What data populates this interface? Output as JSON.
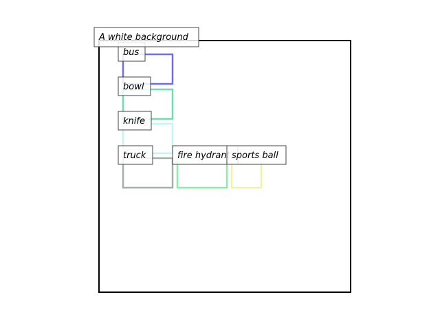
{
  "caption": "A white background",
  "colors": {
    "frame": "#000000",
    "label_border": "#444444",
    "label_fill": "#ffffff"
  },
  "objects": [
    {
      "label": "bus",
      "color": "#6f6fe6"
    },
    {
      "label": "bowl",
      "color": "#6fdcb0"
    },
    {
      "label": "knife",
      "color": "#c5f4f2"
    },
    {
      "label": "truck",
      "color": "#a3b0ad"
    },
    {
      "label": "fire hydrant",
      "color": "#88efaa"
    },
    {
      "label": "sports ball",
      "color": "#f4f1a6"
    }
  ]
}
